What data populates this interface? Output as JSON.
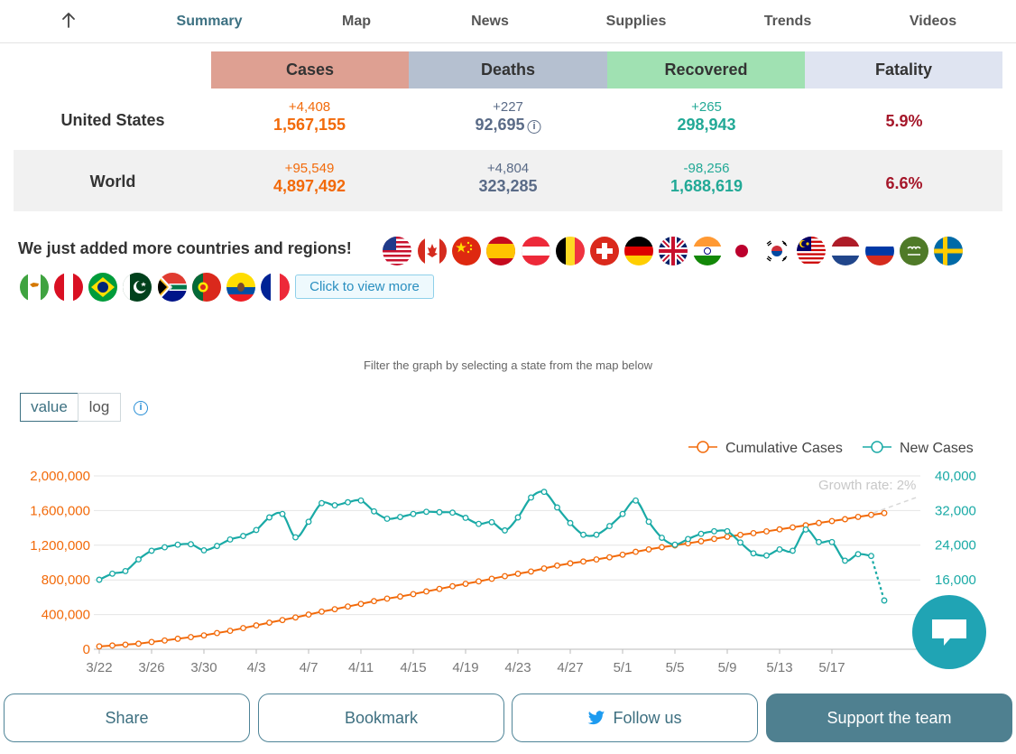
{
  "nav": {
    "tabs": [
      {
        "label": "Summary",
        "active": true
      },
      {
        "label": "Map"
      },
      {
        "label": "News"
      },
      {
        "label": "Supplies"
      },
      {
        "label": "Trends"
      },
      {
        "label": "Videos"
      }
    ]
  },
  "table": {
    "headers": [
      "Cases",
      "Deaths",
      "Recovered",
      "Fatality"
    ],
    "header_colors": [
      "#dea092",
      "#b5c0d0",
      "#a0e1b2",
      "#dfe4f1"
    ],
    "rows": [
      {
        "name": "United States",
        "cases_delta": "+4,408",
        "cases_total": "1,567,155",
        "deaths_delta": "+227",
        "deaths_total": "92,695",
        "recovered_delta": "+265",
        "recovered_total": "298,943",
        "fatality": "5.9%"
      },
      {
        "name": "World",
        "cases_delta": "+95,549",
        "cases_total": "4,897,492",
        "deaths_delta": "+4,804",
        "deaths_total": "323,285",
        "recovered_delta": "-98,256",
        "recovered_total": "1,688,619",
        "fatality": "6.6%"
      }
    ]
  },
  "added": {
    "text": "We just added more countries and regions!",
    "view_more": "Click to view more",
    "flags_row1": [
      "usa-flag",
      "canada-flag",
      "china-flag",
      "spain-flag",
      "austria-flag",
      "belgium-flag",
      "switzerland-flag",
      "germany-flag",
      "uk-flag",
      "india-flag",
      "japan-flag",
      "south-korea-flag",
      "malaysia-flag",
      "netherlands-flag",
      "russia-flag",
      "saudi-arabia-flag",
      "sweden-flag"
    ],
    "flags_row2": [
      "cyprus-flag",
      "peru-flag",
      "brazil-flag",
      "pakistan-flag",
      "south-africa-flag",
      "portugal-flag",
      "ecuador-flag",
      "france-flag"
    ]
  },
  "filter_text": "Filter the graph by selecting a state from the map below",
  "toggle": {
    "value": "value",
    "log": "log"
  },
  "chart_data": {
    "type": "line",
    "legend": [
      "Cumulative Cases",
      "New Cases"
    ],
    "legend_position": "top-right",
    "annotation": "Growth rate: 2%",
    "x_tick_labels": [
      "3/22",
      "3/26",
      "3/30",
      "4/3",
      "4/7",
      "4/11",
      "4/15",
      "4/19",
      "4/23",
      "4/27",
      "5/1",
      "5/5",
      "5/9",
      "5/13",
      "5/17"
    ],
    "y_left_ticks": [
      "0",
      "400,000",
      "800,000",
      "1,200,000",
      "1,600,000",
      "2,000,000"
    ],
    "y_right_ticks": [
      "16,000",
      "24,000",
      "32,000",
      "40,000"
    ],
    "y_left_range": [
      0,
      2000000
    ],
    "y_right_range": [
      8000,
      40000
    ],
    "grid": true,
    "start_date": "3/22",
    "series": [
      {
        "name": "Cumulative Cases",
        "axis": "left",
        "color": "#f26a0a",
        "values": [
          33000,
          43000,
          53000,
          64000,
          84000,
          101000,
          121000,
          140000,
          160000,
          187000,
          213000,
          244000,
          275000,
          307000,
          337000,
          367000,
          400000,
          434000,
          462000,
          493000,
          523000,
          555000,
          584000,
          608000,
          636000,
          667000,
          696000,
          727000,
          755000,
          783000,
          813000,
          843000,
          871000,
          897000,
          932000,
          965000,
          991000,
          1012000,
          1036000,
          1061000,
          1091000,
          1124000,
          1152000,
          1177000,
          1198000,
          1222000,
          1246000,
          1273000,
          1298000,
          1320000,
          1339000,
          1360000,
          1383000,
          1406000,
          1430000,
          1457000,
          1479000,
          1500000,
          1527000,
          1550000,
          1571000
        ]
      },
      {
        "name": "New Cases",
        "axis": "right",
        "color": "#1aaaa6",
        "values": [
          16000,
          17400,
          18000,
          20700,
          22700,
          23500,
          24100,
          24200,
          22800,
          23800,
          25300,
          26100,
          27500,
          30400,
          31200,
          25800,
          29400,
          33700,
          33200,
          33900,
          34300,
          31800,
          30100,
          30500,
          31200,
          31700,
          31600,
          31500,
          30300,
          28900,
          29300,
          27400,
          30400,
          35000,
          36300,
          32700,
          29100,
          26400,
          26400,
          28400,
          31200,
          34300,
          29400,
          25700,
          24100,
          25400,
          26600,
          27200,
          27200,
          24600,
          22100,
          21600,
          23000,
          22700,
          27600,
          24700,
          24700,
          20400,
          21900,
          21500,
          11200
        ]
      }
    ]
  },
  "buttons": {
    "share": "Share",
    "bookmark": "Bookmark",
    "follow": "Follow us",
    "support": "Support the team"
  }
}
